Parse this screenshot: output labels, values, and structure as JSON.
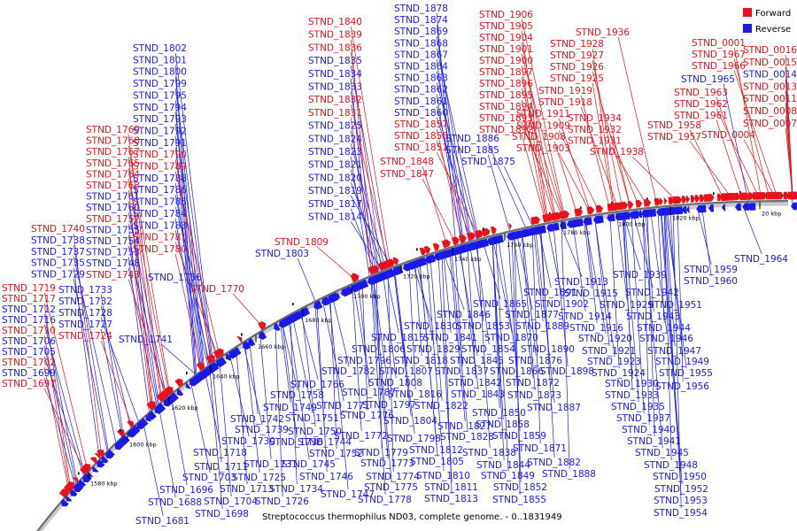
{
  "caption": "Streptococcus thermophilus ND03, complete genome. - 0..1831949",
  "legend": {
    "forward_label": "Forward",
    "reverse_label": "Reverse",
    "forward_color": "#e8121a",
    "reverse_color": "#1a1ae8"
  },
  "ticks": [
    "1580 kbp",
    "1600 kbp",
    "1620 kbp",
    "1640 kbp",
    "1660 kbp",
    "1680 kbp",
    "1700 kbp",
    "1720 kbp",
    "1740 kbp",
    "1760 kbp",
    "1780 kbp",
    "1800 kbp",
    "1820 kbp",
    "20 kbp"
  ],
  "labels": [
    {
      "t": "STND_1878",
      "s": "-"
    },
    {
      "t": "STND_1874",
      "s": "-"
    },
    {
      "t": "STND_1869",
      "s": "-"
    },
    {
      "t": "STND_1868",
      "s": "-"
    },
    {
      "t": "STND_1867",
      "s": "-"
    },
    {
      "t": "STND_1864",
      "s": "-"
    },
    {
      "t": "STND_1863",
      "s": "-"
    },
    {
      "t": "STND_1862",
      "s": "-"
    },
    {
      "t": "STND_1861",
      "s": "-"
    },
    {
      "t": "STND_1860",
      "s": "-"
    },
    {
      "t": "STND_1857",
      "s": "+"
    },
    {
      "t": "STND_1856",
      "s": "+"
    },
    {
      "t": "STND_1851",
      "s": "+"
    },
    {
      "t": "STND_1848",
      "s": "+"
    },
    {
      "t": "STND_1847",
      "s": "+"
    },
    {
      "t": "STND_1886",
      "s": "-"
    },
    {
      "t": "STND_1885",
      "s": "-"
    },
    {
      "t": "STND_1875",
      "s": "-"
    },
    {
      "t": "STND_1840",
      "s": "+"
    },
    {
      "t": "STND_1839",
      "s": "+"
    },
    {
      "t": "STND_1836",
      "s": "+"
    },
    {
      "t": "STND_1835",
      "s": "-"
    },
    {
      "t": "STND_1834",
      "s": "-"
    },
    {
      "t": "STND_1833",
      "s": "-"
    },
    {
      "t": "STND_1832",
      "s": "+"
    },
    {
      "t": "STND_1831",
      "s": "+"
    },
    {
      "t": "STND_1825",
      "s": "-"
    },
    {
      "t": "STND_1824",
      "s": "-"
    },
    {
      "t": "STND_1823",
      "s": "-"
    },
    {
      "t": "STND_1821",
      "s": "-"
    },
    {
      "t": "STND_1820",
      "s": "-"
    },
    {
      "t": "STND_1819",
      "s": "-"
    },
    {
      "t": "STND_1817",
      "s": "-"
    },
    {
      "t": "STND_1814",
      "s": "-"
    },
    {
      "t": "STND_1906",
      "s": "+"
    },
    {
      "t": "STND_1905",
      "s": "+"
    },
    {
      "t": "STND_1904",
      "s": "+"
    },
    {
      "t": "STND_1901",
      "s": "+"
    },
    {
      "t": "STND_1900",
      "s": "+"
    },
    {
      "t": "STND_1897",
      "s": "+"
    },
    {
      "t": "STND_1896",
      "s": "+"
    },
    {
      "t": "STND_1895",
      "s": "+"
    },
    {
      "t": "STND_1894",
      "s": "+"
    },
    {
      "t": "STND_1893",
      "s": "+"
    },
    {
      "t": "STND_1892",
      "s": "+"
    },
    {
      "t": "STND_1911",
      "s": "+"
    },
    {
      "t": "STND_1909",
      "s": "+"
    },
    {
      "t": "STND_1908",
      "s": "+"
    },
    {
      "t": "STND_1903",
      "s": "+"
    },
    {
      "t": "STND_1936",
      "s": "+"
    },
    {
      "t": "STND_1928",
      "s": "+"
    },
    {
      "t": "STND_1927",
      "s": "+"
    },
    {
      "t": "STND_1926",
      "s": "+"
    },
    {
      "t": "STND_1925",
      "s": "+"
    },
    {
      "t": "STND_1919",
      "s": "+"
    },
    {
      "t": "STND_1918",
      "s": "+"
    },
    {
      "t": "STND_1934",
      "s": "+"
    },
    {
      "t": "STND_1932",
      "s": "+"
    },
    {
      "t": "STND_1931",
      "s": "+"
    },
    {
      "t": "STND_1938",
      "s": "+"
    },
    {
      "t": "STND_0001",
      "s": "+"
    },
    {
      "t": "STND_1967",
      "s": "+"
    },
    {
      "t": "STND_1966",
      "s": "+"
    },
    {
      "t": "STND_1965",
      "s": "-"
    },
    {
      "t": "STND_1963",
      "s": "+"
    },
    {
      "t": "STND_1962",
      "s": "+"
    },
    {
      "t": "STND_1961",
      "s": "+"
    },
    {
      "t": "STND_1958",
      "s": "+"
    },
    {
      "t": "STND_1957",
      "s": "+"
    },
    {
      "t": "STND_0016",
      "s": "+"
    },
    {
      "t": "STND_0015",
      "s": "+"
    },
    {
      "t": "STND_0014",
      "s": "-"
    },
    {
      "t": "STND_0013",
      "s": "+"
    },
    {
      "t": "STND_0011",
      "s": "+"
    },
    {
      "t": "STND_0008",
      "s": "+"
    },
    {
      "t": "STND_0007",
      "s": "+"
    },
    {
      "t": "STND_0004",
      "s": "+"
    },
    {
      "t": "STND_1802",
      "s": "-"
    },
    {
      "t": "STND_1801",
      "s": "-"
    },
    {
      "t": "STND_1800",
      "s": "-"
    },
    {
      "t": "STND_1799",
      "s": "-"
    },
    {
      "t": "STND_1795",
      "s": "-"
    },
    {
      "t": "STND_1794",
      "s": "-"
    },
    {
      "t": "STND_1793",
      "s": "-"
    },
    {
      "t": "STND_1792",
      "s": "-"
    },
    {
      "t": "STND_1791",
      "s": "-"
    },
    {
      "t": "STND_1790",
      "s": "+"
    },
    {
      "t": "STND_1789",
      "s": "+"
    },
    {
      "t": "STND_1788",
      "s": "-"
    },
    {
      "t": "STND_1786",
      "s": "-"
    },
    {
      "t": "STND_1785",
      "s": "-"
    },
    {
      "t": "STND_1784",
      "s": "-"
    },
    {
      "t": "STND_1783",
      "s": "-"
    },
    {
      "t": "STND_1781",
      "s": "+"
    },
    {
      "t": "STND_1780",
      "s": "+"
    },
    {
      "t": "STND_1769",
      "s": "+"
    },
    {
      "t": "STND_1768",
      "s": "+"
    },
    {
      "t": "STND_1767",
      "s": "+"
    },
    {
      "t": "STND_1765",
      "s": "+"
    },
    {
      "t": "STND_1764",
      "s": "+"
    },
    {
      "t": "STND_1763",
      "s": "+"
    },
    {
      "t": "STND_1761",
      "s": "-"
    },
    {
      "t": "STND_1760",
      "s": "-"
    },
    {
      "t": "STND_1757",
      "s": "+"
    },
    {
      "t": "STND_1755",
      "s": "-"
    },
    {
      "t": "STND_1754",
      "s": "-"
    },
    {
      "t": "STND_1753",
      "s": "-"
    },
    {
      "t": "STND_1748",
      "s": "-"
    },
    {
      "t": "STND_1743",
      "s": "+"
    },
    {
      "t": "STND_1756",
      "s": "-"
    },
    {
      "t": "STND_1770",
      "s": "+"
    },
    {
      "t": "STND_1809",
      "s": "+"
    },
    {
      "t": "STND_1803",
      "s": "-"
    },
    {
      "t": "STND_1740",
      "s": "+"
    },
    {
      "t": "STND_1738",
      "s": "-"
    },
    {
      "t": "STND_1737",
      "s": "-"
    },
    {
      "t": "STND_1735",
      "s": "-"
    },
    {
      "t": "STND_1729",
      "s": "-"
    },
    {
      "t": "STND_1719",
      "s": "+"
    },
    {
      "t": "STND_1717",
      "s": "+"
    },
    {
      "t": "STND_1712",
      "s": "-"
    },
    {
      "t": "STND_1716",
      "s": "-"
    },
    {
      "t": "STND_1710",
      "s": "+"
    },
    {
      "t": "STND_1706",
      "s": "-"
    },
    {
      "t": "STND_1705",
      "s": "-"
    },
    {
      "t": "STND_1702",
      "s": "+"
    },
    {
      "t": "STND_1699",
      "s": "-"
    },
    {
      "t": "STND_1697",
      "s": "+"
    },
    {
      "t": "STND_1733",
      "s": "-"
    },
    {
      "t": "STND_1732",
      "s": "-"
    },
    {
      "t": "STND_1728",
      "s": "-"
    },
    {
      "t": "STND_1727",
      "s": "-"
    },
    {
      "t": "STND_1724",
      "s": "+"
    },
    {
      "t": "STND_1741",
      "s": "-"
    },
    {
      "t": "STND_1964",
      "s": "-"
    },
    {
      "t": "STND_1959",
      "s": "-"
    },
    {
      "t": "STND_1960",
      "s": "-"
    },
    {
      "t": "STND_1913",
      "s": "-"
    },
    {
      "t": "STND_1939",
      "s": "-"
    },
    {
      "t": "STND_1891",
      "s": "-"
    },
    {
      "t": "STND_1915",
      "s": "-"
    },
    {
      "t": "STND_1942",
      "s": "-"
    },
    {
      "t": "STND_1902",
      "s": "-"
    },
    {
      "t": "STND_1929",
      "s": "-"
    },
    {
      "t": "STND_1951",
      "s": "-"
    },
    {
      "t": "STND_1865",
      "s": "-"
    },
    {
      "t": "STND_1914",
      "s": "-"
    },
    {
      "t": "STND_1943",
      "s": "-"
    },
    {
      "t": "STND_1846",
      "s": "-"
    },
    {
      "t": "STND_1877",
      "s": "-"
    },
    {
      "t": "STND_1916",
      "s": "-"
    },
    {
      "t": "STND_1944",
      "s": "-"
    },
    {
      "t": "STND_1830",
      "s": "-"
    },
    {
      "t": "STND_1853",
      "s": "-"
    },
    {
      "t": "STND_1889",
      "s": "-"
    },
    {
      "t": "STND_1920",
      "s": "-"
    },
    {
      "t": "STND_1946",
      "s": "-"
    },
    {
      "t": "STND_1815",
      "s": "-"
    },
    {
      "t": "STND_1841",
      "s": "-"
    },
    {
      "t": "STND_1870",
      "s": "-"
    },
    {
      "t": "STND_1921",
      "s": "-"
    },
    {
      "t": "STND_1947",
      "s": "-"
    },
    {
      "t": "STND_1806",
      "s": "-"
    },
    {
      "t": "STND_1829",
      "s": "-"
    },
    {
      "t": "STND_1854",
      "s": "-"
    },
    {
      "t": "STND_1890",
      "s": "-"
    },
    {
      "t": "STND_1923",
      "s": "-"
    },
    {
      "t": "STND_1949",
      "s": "-"
    },
    {
      "t": "STND_1796",
      "s": "-"
    },
    {
      "t": "STND_1818",
      "s": "-"
    },
    {
      "t": "STND_1845",
      "s": "-"
    },
    {
      "t": "STND_1876",
      "s": "-"
    },
    {
      "t": "STND_1924",
      "s": "-"
    },
    {
      "t": "STND_1955",
      "s": "-"
    },
    {
      "t": "STND_1782",
      "s": "-"
    },
    {
      "t": "STND_1807",
      "s": "-"
    },
    {
      "t": "STND_1837",
      "s": "-"
    },
    {
      "t": "STND_1866",
      "s": "-"
    },
    {
      "t": "STND_1898",
      "s": "-"
    },
    {
      "t": "STND_1930",
      "s": "-"
    },
    {
      "t": "STND_1956",
      "s": "-"
    },
    {
      "t": "STND_1766",
      "s": "-"
    },
    {
      "t": "STND_1808",
      "s": "-"
    },
    {
      "t": "STND_1842",
      "s": "-"
    },
    {
      "t": "STND_1872",
      "s": "-"
    },
    {
      "t": "STND_1758",
      "s": "-"
    },
    {
      "t": "STND_1787",
      "s": "-"
    },
    {
      "t": "STND_1816",
      "s": "-"
    },
    {
      "t": "STND_1843",
      "s": "-"
    },
    {
      "t": "STND_1873",
      "s": "-"
    },
    {
      "t": "STND_1933",
      "s": "-"
    },
    {
      "t": "STND_1771",
      "s": "-"
    },
    {
      "t": "STND_1797",
      "s": "-"
    },
    {
      "t": "STND_1822",
      "s": "-"
    },
    {
      "t": "STND_1850",
      "s": "-"
    },
    {
      "t": "STND_1887",
      "s": "-"
    },
    {
      "t": "STND_1935",
      "s": "-"
    },
    {
      "t": "STND_1749",
      "s": "-"
    },
    {
      "t": "STND_1776",
      "s": "-"
    },
    {
      "t": "STND_1804",
      "s": "-"
    },
    {
      "t": "STND_1937",
      "s": "-"
    },
    {
      "t": "STND_1742",
      "s": "-"
    },
    {
      "t": "STND_1751",
      "s": "-"
    },
    {
      "t": "STND_1827",
      "s": "-"
    },
    {
      "t": "STND_1858",
      "s": "-"
    },
    {
      "t": "STND_1940",
      "s": "-"
    },
    {
      "t": "STND_1739",
      "s": "-"
    },
    {
      "t": "STND_1750",
      "s": "-"
    },
    {
      "t": "STND_1772",
      "s": "-"
    },
    {
      "t": "STND_1798",
      "s": "-"
    },
    {
      "t": "STND_1828",
      "s": "-"
    },
    {
      "t": "STND_1859",
      "s": "-"
    },
    {
      "t": "STND_1941",
      "s": "-"
    },
    {
      "t": "STND_1730",
      "s": "-"
    },
    {
      "t": "STND_1736",
      "s": "-"
    },
    {
      "t": "STND_1744",
      "s": "-"
    },
    {
      "t": "STND_1779",
      "s": "-"
    },
    {
      "t": "STND_1812",
      "s": "-"
    },
    {
      "t": "STND_1838",
      "s": "-"
    },
    {
      "t": "STND_1871",
      "s": "-"
    },
    {
      "t": "STND_1945",
      "s": "-"
    },
    {
      "t": "STND_1718",
      "s": "-"
    },
    {
      "t": "STND_1731",
      "s": "-"
    },
    {
      "t": "STND_1752",
      "s": "-"
    },
    {
      "t": "STND_1805",
      "s": "-"
    },
    {
      "t": "STND_1882",
      "s": "-"
    },
    {
      "t": "STND_1711",
      "s": "-"
    },
    {
      "t": "STND_1745",
      "s": "-"
    },
    {
      "t": "STND_1773",
      "s": "-"
    },
    {
      "t": "STND_1844",
      "s": "-"
    },
    {
      "t": "STND_1948",
      "s": "-"
    },
    {
      "t": "STND_1703",
      "s": "-"
    },
    {
      "t": "STND_1725",
      "s": "-"
    },
    {
      "t": "STND_1746",
      "s": "-"
    },
    {
      "t": "STND_1774",
      "s": "-"
    },
    {
      "t": "STND_1810",
      "s": "-"
    },
    {
      "t": "STND_1849",
      "s": "-"
    },
    {
      "t": "STND_1888",
      "s": "-"
    },
    {
      "t": "STND_1950",
      "s": "-"
    },
    {
      "t": "STND_1696",
      "s": "-"
    },
    {
      "t": "STND_1713",
      "s": "-"
    },
    {
      "t": "STND_1734",
      "s": "-"
    },
    {
      "t": "STND_1775",
      "s": "-"
    },
    {
      "t": "STND_1811",
      "s": "-"
    },
    {
      "t": "STND_1852",
      "s": "-"
    },
    {
      "t": "STND_1952",
      "s": "-"
    },
    {
      "t": "STND_1688",
      "s": "-"
    },
    {
      "t": "STND_1704",
      "s": "-"
    },
    {
      "t": "STND_1726",
      "s": "-"
    },
    {
      "t": "STND_1747",
      "s": "-"
    },
    {
      "t": "STND_1778",
      "s": "-"
    },
    {
      "t": "STND_1813",
      "s": "-"
    },
    {
      "t": "STND_1855",
      "s": "-"
    },
    {
      "t": "STND_1953",
      "s": "-"
    },
    {
      "t": "STND_1698",
      "s": "-"
    },
    {
      "t": "STND_1954",
      "s": "-"
    },
    {
      "t": "STND_1681",
      "s": "-"
    }
  ]
}
